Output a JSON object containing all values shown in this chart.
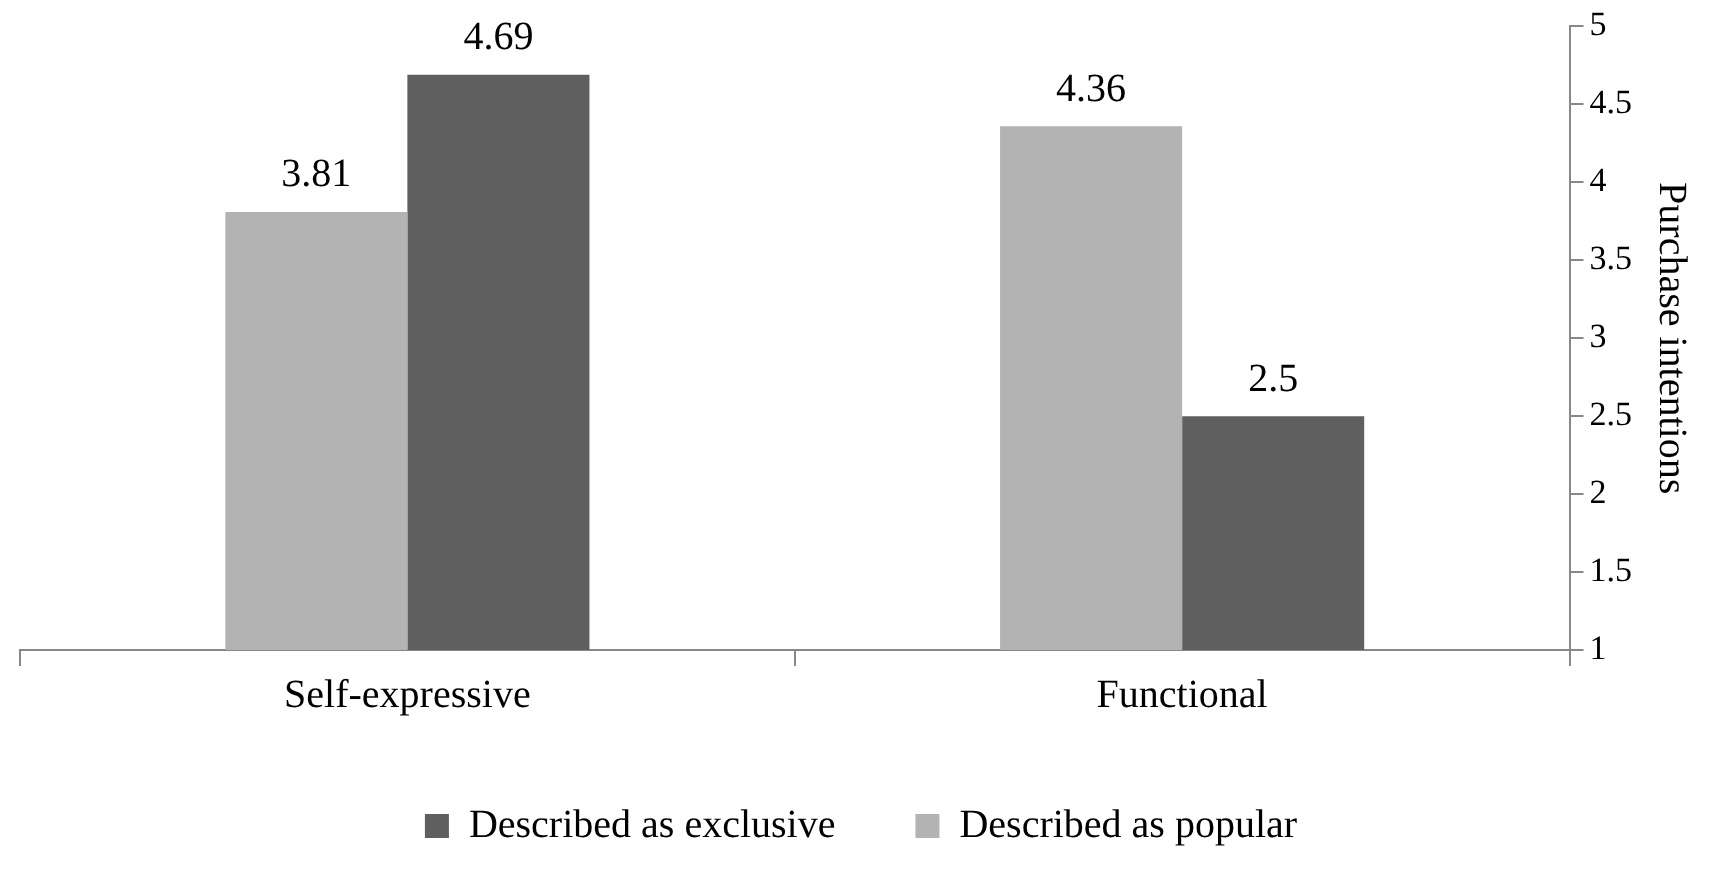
{
  "chart_data": {
    "type": "bar",
    "ylabel": "Purchase intentions",
    "categories": [
      "Self-expressive",
      "Functional"
    ],
    "series": [
      {
        "name": "Described as popular",
        "color": "#b3b3b3",
        "values": [
          3.81,
          4.36
        ]
      },
      {
        "name": "Described as exclusive",
        "color": "#5f5f5f",
        "values": [
          4.69,
          2.5
        ]
      }
    ],
    "ylim": [
      1,
      5
    ],
    "yticks": [
      1,
      1.5,
      2,
      2.5,
      3,
      3.5,
      4,
      4.5,
      5
    ],
    "data_labels": true,
    "legend": "bottom",
    "grid": false
  }
}
